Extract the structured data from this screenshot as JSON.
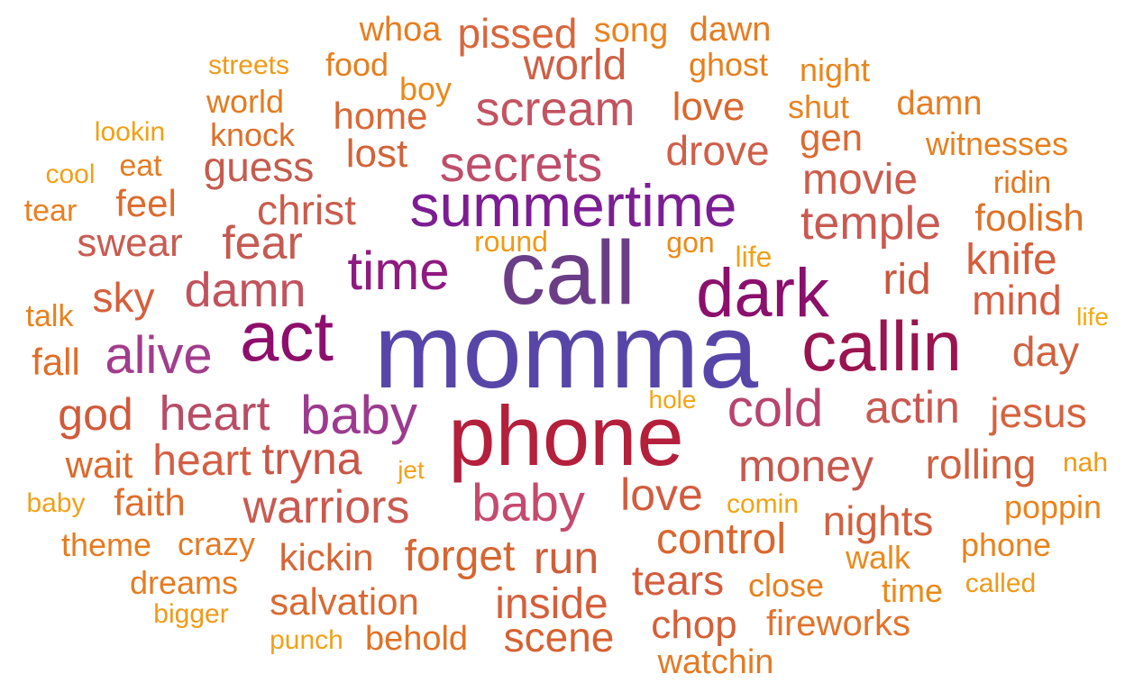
{
  "words": [
    {
      "text": "momma",
      "color": "#5746a8"
    },
    {
      "text": "call",
      "color": "#6b3d87"
    },
    {
      "text": "phone",
      "color": "#b4203c"
    },
    {
      "text": "summertime",
      "color": "#7d1d93"
    },
    {
      "text": "callin",
      "color": "#9a1450"
    },
    {
      "text": "dark",
      "color": "#8b0f6c"
    },
    {
      "text": "act",
      "color": "#8e0e6c"
    },
    {
      "text": "time",
      "color": "#8f1a80"
    },
    {
      "text": "baby",
      "color": "#9c3a8f"
    },
    {
      "text": "alive",
      "color": "#a23c8c"
    },
    {
      "text": "baby",
      "color": "#c44a6e"
    },
    {
      "text": "cold",
      "color": "#b7456e"
    },
    {
      "text": "secrets",
      "color": "#bd4e6b"
    },
    {
      "text": "scream",
      "color": "#c25461"
    },
    {
      "text": "heart",
      "color": "#b94c66"
    },
    {
      "text": "damn",
      "color": "#c2525c"
    },
    {
      "text": "fear",
      "color": "#c45a52"
    },
    {
      "text": "warriors",
      "color": "#c95a50"
    },
    {
      "text": "temple",
      "color": "#c95a52"
    },
    {
      "text": "money",
      "color": "#c7584f"
    },
    {
      "text": "actin",
      "color": "#c85951"
    },
    {
      "text": "world",
      "color": "#cd6046"
    },
    {
      "text": "pissed",
      "color": "#d9663d"
    },
    {
      "text": "heart",
      "color": "#d35e44"
    },
    {
      "text": "tryna",
      "color": "#c95548"
    },
    {
      "text": "guess",
      "color": "#c45c4e"
    },
    {
      "text": "christ",
      "color": "#c95c4e"
    },
    {
      "text": "swear",
      "color": "#c85c52"
    },
    {
      "text": "drove",
      "color": "#cf5f49"
    },
    {
      "text": "movie",
      "color": "#cc5c4c"
    },
    {
      "text": "jesus",
      "color": "#d5633f"
    },
    {
      "text": "rolling",
      "color": "#d0613f"
    },
    {
      "text": "knife",
      "color": "#d35e3d"
    },
    {
      "text": "mind",
      "color": "#d35e40"
    },
    {
      "text": "rid",
      "color": "#c9573e"
    },
    {
      "text": "day",
      "color": "#d0623f"
    },
    {
      "text": "god",
      "color": "#d05a3b"
    },
    {
      "text": "love",
      "color": "#d35c3e"
    },
    {
      "text": "nights",
      "color": "#d2613e"
    },
    {
      "text": "control",
      "color": "#d8672f"
    },
    {
      "text": "forget",
      "color": "#d56631"
    },
    {
      "text": "run",
      "color": "#cd5e3a"
    },
    {
      "text": "inside",
      "color": "#d55f3b"
    },
    {
      "text": "scene",
      "color": "#d56233"
    },
    {
      "text": "tears",
      "color": "#d35c3d"
    },
    {
      "text": "salvation",
      "color": "#d96a32"
    },
    {
      "text": "kickin",
      "color": "#d76637"
    },
    {
      "text": "chop",
      "color": "#d65f37"
    },
    {
      "text": "sky",
      "color": "#d65f3b"
    },
    {
      "text": "lost",
      "color": "#d36238"
    },
    {
      "text": "home",
      "color": "#d96836"
    },
    {
      "text": "love",
      "color": "#d9672f"
    },
    {
      "text": "gen",
      "color": "#da6a33"
    },
    {
      "text": "feel",
      "color": "#dc6b2f"
    },
    {
      "text": "foolish",
      "color": "#dd7228"
    },
    {
      "text": "fall",
      "color": "#df6d2a"
    },
    {
      "text": "wait",
      "color": "#dc6a2c"
    },
    {
      "text": "faith",
      "color": "#dd6e2f"
    },
    {
      "text": "fireworks",
      "color": "#e2732c"
    },
    {
      "text": "watchin",
      "color": "#e27a26"
    },
    {
      "text": "behold",
      "color": "#e17125"
    },
    {
      "text": "whoa",
      "color": "#e77d20"
    },
    {
      "text": "song",
      "color": "#e88321"
    },
    {
      "text": "dawn",
      "color": "#e47d22"
    },
    {
      "text": "ghost",
      "color": "#e6801e"
    },
    {
      "text": "night",
      "color": "#e9861d"
    },
    {
      "text": "damn",
      "color": "#e67d23"
    },
    {
      "text": "shut",
      "color": "#e78323"
    },
    {
      "text": "witnesses",
      "color": "#e5801f"
    },
    {
      "text": "ridin",
      "color": "#e3781f"
    },
    {
      "text": "knock",
      "color": "#de6f2a"
    },
    {
      "text": "world",
      "color": "#e37b20"
    },
    {
      "text": "food",
      "color": "#e57e1e"
    },
    {
      "text": "boy",
      "color": "#ea8a1a"
    },
    {
      "text": "eat",
      "color": "#e47c22"
    },
    {
      "text": "streets",
      "color": "#ef9a18"
    },
    {
      "text": "lookin",
      "color": "#f0a014"
    },
    {
      "text": "cool",
      "color": "#f0a018"
    },
    {
      "text": "tear",
      "color": "#e78021"
    },
    {
      "text": "talk",
      "color": "#e6821f"
    },
    {
      "text": "round",
      "color": "#ef9a15"
    },
    {
      "text": "gon",
      "color": "#e98b19"
    },
    {
      "text": "life",
      "color": "#f0a11a"
    },
    {
      "text": "life",
      "color": "#f3aa14"
    },
    {
      "text": "hole",
      "color": "#f2a515"
    },
    {
      "text": "jet",
      "color": "#f0a218"
    },
    {
      "text": "nah",
      "color": "#ef9a15"
    },
    {
      "text": "baby",
      "color": "#f0a018"
    },
    {
      "text": "comin",
      "color": "#f1a414"
    },
    {
      "text": "poppin",
      "color": "#e8841d"
    },
    {
      "text": "phone",
      "color": "#e7831f"
    },
    {
      "text": "called",
      "color": "#ef9918"
    },
    {
      "text": "walk",
      "color": "#ea8a1c"
    },
    {
      "text": "close",
      "color": "#e7801f"
    },
    {
      "text": "time",
      "color": "#e98a1b"
    },
    {
      "text": "theme",
      "color": "#e57c22"
    },
    {
      "text": "crazy",
      "color": "#e37a25"
    },
    {
      "text": "dreams",
      "color": "#e57c22"
    },
    {
      "text": "bigger",
      "color": "#ef9a18"
    },
    {
      "text": "punch",
      "color": "#f0a018"
    }
  ]
}
